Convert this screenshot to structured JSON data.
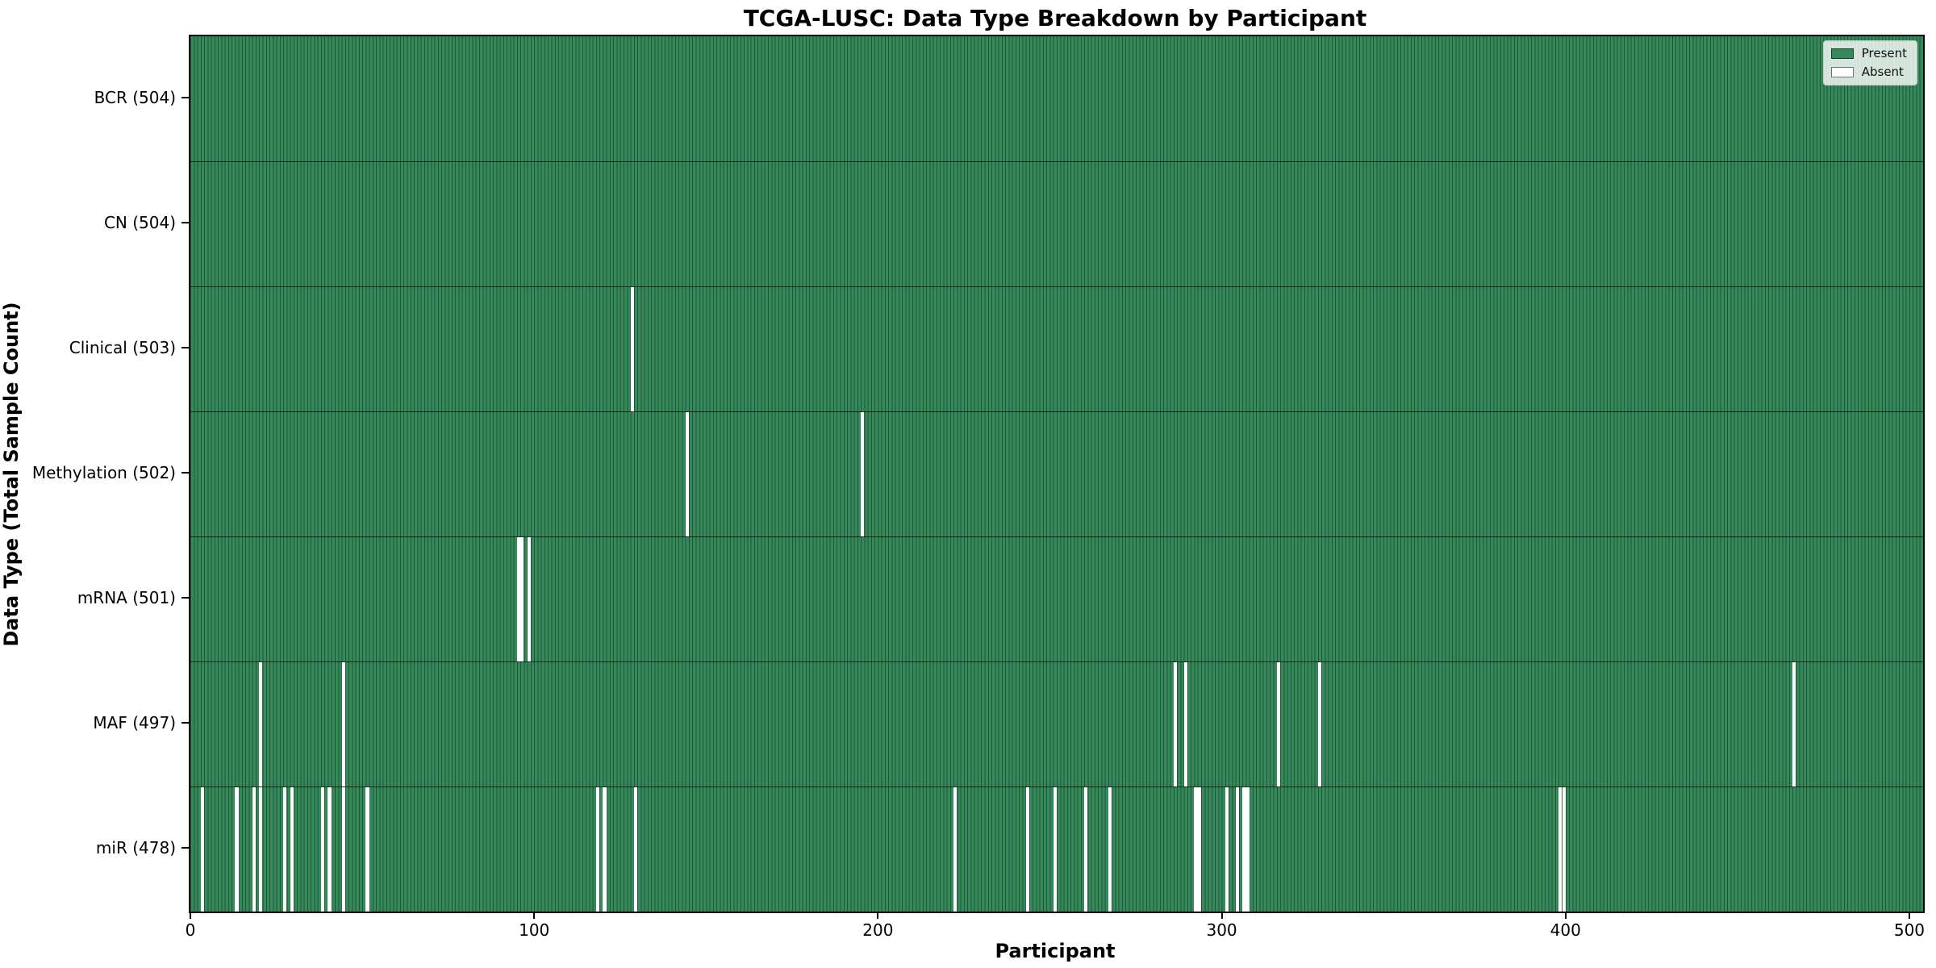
{
  "chart_data": {
    "type": "heatmap",
    "title": "TCGA-LUSC: Data Type Breakdown by Participant",
    "xlabel": "Participant",
    "ylabel": "Data Type (Total Sample Count)",
    "x_ticks": [
      0,
      100,
      200,
      300,
      400,
      500
    ],
    "x_range": [
      0,
      504
    ],
    "n_participants": 504,
    "legend": [
      {
        "name": "present",
        "label": "Present",
        "color": "#35895B"
      },
      {
        "name": "absent",
        "label": "Absent",
        "color": "#FFFFFF"
      }
    ],
    "rows": [
      {
        "name": "bcr",
        "label": "BCR (504)",
        "count": 504,
        "absent": []
      },
      {
        "name": "cn",
        "label": "CN (504)",
        "count": 504,
        "absent": []
      },
      {
        "name": "clinical",
        "label": "Clinical (503)",
        "count": 503,
        "absent": [
          128
        ]
      },
      {
        "name": "methylation",
        "label": "Methylation (502)",
        "count": 502,
        "absent": [
          144,
          195
        ]
      },
      {
        "name": "mrna",
        "label": "mRNA (501)",
        "count": 501,
        "absent": [
          95,
          96,
          98
        ]
      },
      {
        "name": "maf",
        "label": "MAF (497)",
        "count": 497,
        "absent": [
          20,
          44,
          286,
          289,
          316,
          328,
          466
        ]
      },
      {
        "name": "mir",
        "label": "miR (478)",
        "count": 478,
        "absent": [
          3,
          13,
          18,
          20,
          27,
          29,
          38,
          40,
          44,
          51,
          118,
          120,
          129,
          222,
          243,
          251,
          260,
          267,
          292,
          293,
          301,
          304,
          306,
          307,
          398,
          399
        ]
      }
    ],
    "colors": {
      "present": "#35895B",
      "absent": "#FFFFFF",
      "cell_edge": "rgba(0,0,0,0.38)",
      "row_divider": "rgba(0,0,0,0.7)",
      "frame": "#000000",
      "legend_bg": "rgba(255,255,255,0.8)",
      "text": "#000000"
    }
  }
}
